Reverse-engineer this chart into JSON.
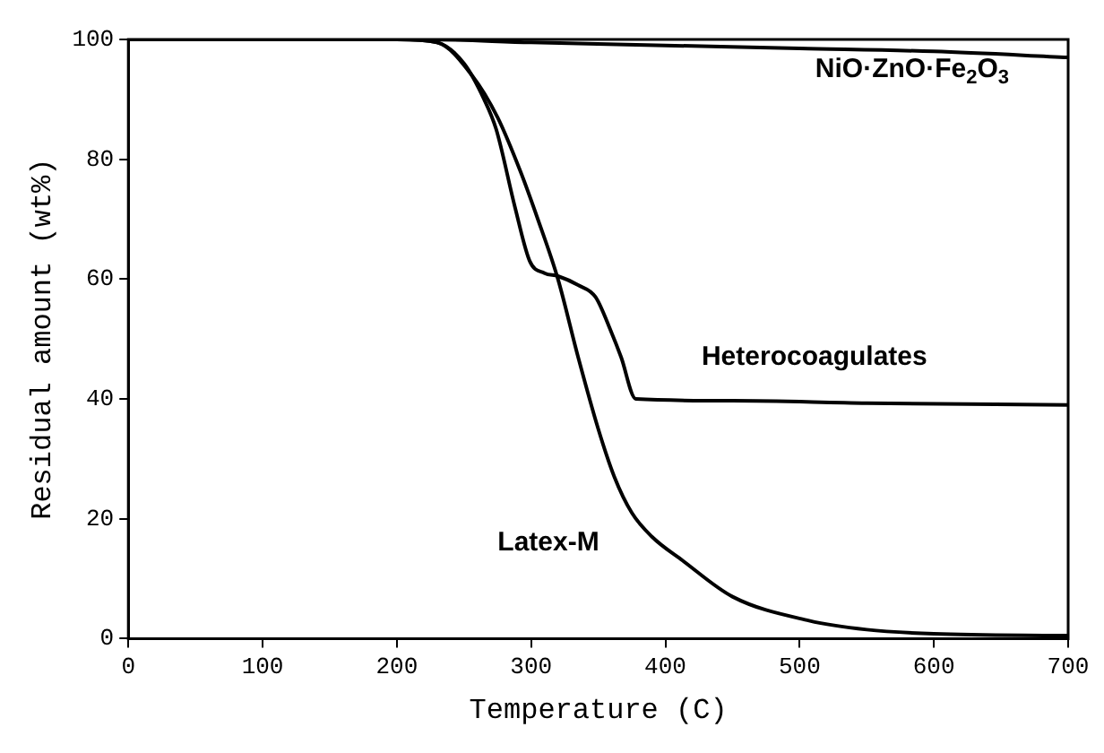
{
  "chart_data": {
    "type": "line",
    "xlabel": "Temperature (C)",
    "ylabel": "Residual amount (wt%)",
    "xlim": [
      0,
      700
    ],
    "xticks": [
      0,
      100,
      200,
      300,
      400,
      500,
      600,
      700
    ],
    "ylim": [
      0,
      100
    ],
    "yticks": [
      0,
      20,
      40,
      60,
      80,
      100
    ],
    "grid": false,
    "legend": false,
    "marker": "none",
    "line_style": "solid",
    "series": [
      {
        "name": "NiO·ZnO·Fe$_{2}$O$_{3}$",
        "color": "#000000",
        "x": [
          0,
          220,
          300,
          400,
          500,
          600,
          700
        ],
        "values": [
          100,
          100,
          99.5,
          99,
          98.5,
          98,
          97
        ]
      },
      {
        "name": "Heterocoagulates",
        "color": "#000000",
        "x": [
          0,
          200,
          230,
          250,
          265,
          274,
          288,
          299,
          310,
          320,
          335,
          348,
          360,
          367,
          378,
          450,
          550,
          700
        ],
        "values": [
          100,
          100,
          99.5,
          96,
          90,
          85,
          72,
          63,
          61,
          60.5,
          59,
          57,
          51,
          47,
          40,
          39.7,
          39.3,
          39
        ]
      },
      {
        "name": "Latex-M",
        "color": "#000000",
        "x": [
          0,
          200,
          230,
          256,
          275,
          292,
          305,
          320,
          335,
          350,
          362,
          375,
          390,
          413,
          450,
          507,
          550,
          600,
          700
        ],
        "values": [
          100,
          100,
          99.5,
          94,
          87,
          78,
          70,
          60,
          47,
          35,
          27,
          21,
          17,
          13,
          7,
          3,
          1.5,
          0.8,
          0.5
        ]
      }
    ]
  }
}
